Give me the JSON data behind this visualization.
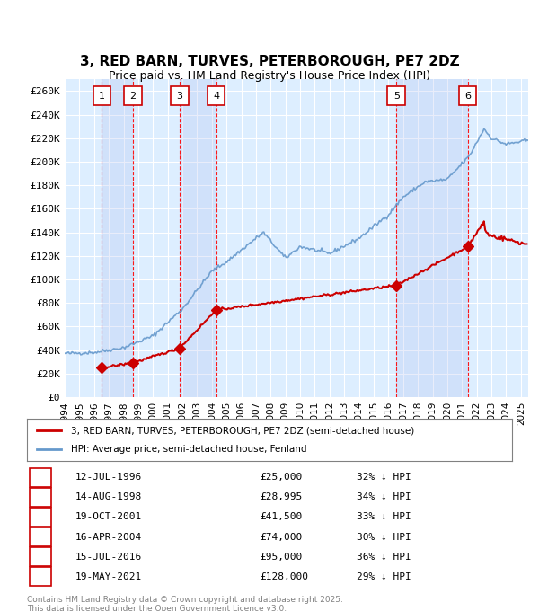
{
  "title": "3, RED BARN, TURVES, PETERBOROUGH, PE7 2DZ",
  "subtitle": "Price paid vs. HM Land Registry's House Price Index (HPI)",
  "title_fontsize": 11,
  "subtitle_fontsize": 9,
  "ylabel_ticks": [
    "£0",
    "£20K",
    "£40K",
    "£60K",
    "£80K",
    "£100K",
    "£120K",
    "£140K",
    "£160K",
    "£180K",
    "£200K",
    "£220K",
    "£240K",
    "£260K"
  ],
  "ytick_values": [
    0,
    20000,
    40000,
    60000,
    80000,
    100000,
    120000,
    140000,
    160000,
    180000,
    200000,
    220000,
    240000,
    260000
  ],
  "ylim": [
    0,
    270000
  ],
  "xlim_start": 1994.0,
  "xlim_end": 2025.5,
  "background_color": "#ffffff",
  "plot_bg_color": "#ddeeff",
  "grid_color": "#ffffff",
  "sales": [
    {
      "num": 1,
      "date": "12-JUL-1996",
      "year": 1996.53,
      "price": 25000,
      "pct": "32%",
      "dir": "↓"
    },
    {
      "num": 2,
      "date": "14-AUG-1998",
      "year": 1998.62,
      "price": 28995,
      "pct": "34%",
      "dir": "↓"
    },
    {
      "num": 3,
      "date": "19-OCT-2001",
      "year": 2001.8,
      "price": 41500,
      "pct": "33%",
      "dir": "↓"
    },
    {
      "num": 4,
      "date": "16-APR-2004",
      "year": 2004.29,
      "price": 74000,
      "pct": "30%",
      "dir": "↓"
    },
    {
      "num": 5,
      "date": "15-JUL-2016",
      "year": 2016.54,
      "price": 95000,
      "pct": "36%",
      "dir": "↓"
    },
    {
      "num": 6,
      "date": "19-MAY-2021",
      "year": 2021.38,
      "price": 128000,
      "pct": "29%",
      "dir": "↓"
    }
  ],
  "legend_label_red": "3, RED BARN, TURVES, PETERBOROUGH, PE7 2DZ (semi-detached house)",
  "legend_label_blue": "HPI: Average price, semi-detached house, Fenland",
  "footer": "Contains HM Land Registry data © Crown copyright and database right 2025.\nThis data is licensed under the Open Government Licence v3.0.",
  "red_color": "#cc0000",
  "blue_color": "#6699cc",
  "sale_marker_color": "#cc0000",
  "vline_color": "#ff0000",
  "num_box_color": "#cc0000",
  "shade_color": "#ddeeff",
  "xtick_years": [
    1994,
    1995,
    1996,
    1997,
    1998,
    1999,
    2000,
    2001,
    2002,
    2003,
    2004,
    2005,
    2006,
    2007,
    2008,
    2009,
    2010,
    2011,
    2012,
    2013,
    2014,
    2015,
    2016,
    2017,
    2018,
    2019,
    2020,
    2021,
    2022,
    2023,
    2024,
    2025
  ]
}
